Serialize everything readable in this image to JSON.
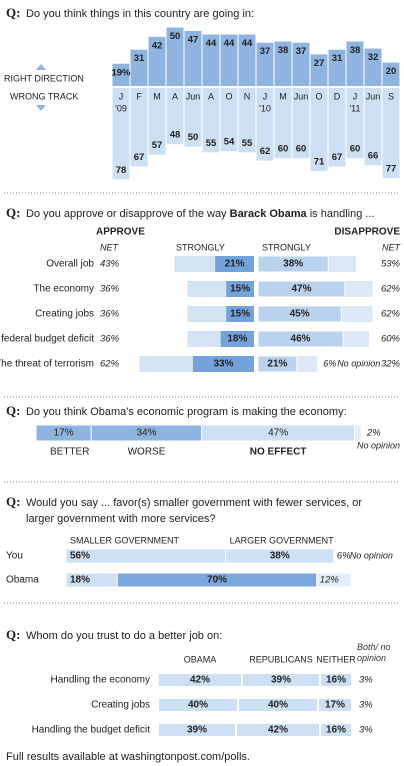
{
  "chart_data": [
    {
      "type": "column",
      "prefix": "Q:",
      "question": [
        [
          "Do you think things in this country are going in:"
        ]
      ],
      "categories": [
        "J",
        "F",
        "M",
        "A",
        "Jun",
        "A",
        "O",
        "N",
        "J",
        "M",
        "Jun",
        "O",
        "D",
        "J",
        "Jun",
        "S"
      ],
      "years": [
        "'09",
        null,
        null,
        null,
        null,
        null,
        null,
        null,
        "'10",
        null,
        null,
        null,
        null,
        "'11",
        null,
        null
      ],
      "series": [
        {
          "name": "RIGHT DIRECTION",
          "color": "#8fb4e0",
          "values": [
            19,
            31,
            42,
            50,
            47,
            44,
            44,
            44,
            37,
            38,
            37,
            27,
            31,
            38,
            32,
            20
          ],
          "value_labels": [
            "19%",
            "31",
            "42",
            "50",
            "47",
            "44",
            "44",
            "44",
            "37",
            "38",
            "37",
            "27",
            "31",
            "38",
            "32",
            "20"
          ]
        },
        {
          "name": "WRONG TRACK",
          "color": "#cddff2",
          "values": [
            78,
            67,
            57,
            48,
            50,
            55,
            54,
            55,
            62,
            60,
            60,
            71,
            67,
            60,
            66,
            77
          ]
        }
      ]
    },
    {
      "type": "diverging",
      "prefix": "Q:",
      "question": [
        [
          "Do you approve or disapprove of the way ",
          "Barack Obama",
          " is handling ..."
        ]
      ],
      "categories": [
        "Overall job",
        "The economy",
        "Creating jobs",
        "The federal budget deficit",
        "The threat of terrorism"
      ],
      "series": [
        {
          "name": "APPROVE",
          "net_name": "NET",
          "strong_name": "STRONGLY",
          "color": "#d3e3f4",
          "strong_color": "#74a2da",
          "values": [
            43,
            36,
            36,
            36,
            62
          ],
          "value_labels": [
            "43%",
            "36%",
            "36%",
            "36%",
            "62%"
          ],
          "strong_values": [
            21,
            15,
            15,
            18,
            33
          ],
          "strong_value_labels": [
            "21%",
            "15%",
            "15%",
            "18%",
            "33%"
          ]
        },
        {
          "name": "DISAPPROVE",
          "net_name": "NET",
          "strong_name": "STRONGLY",
          "color": "#dde9f6",
          "strong_color": "#b9d2ee",
          "values": [
            53,
            62,
            62,
            60,
            32
          ],
          "value_labels": [
            "53%",
            "62%",
            "62%",
            "60%",
            "32%"
          ],
          "strong_values": [
            38,
            47,
            45,
            46,
            21
          ],
          "strong_value_labels": [
            "38%",
            "47%",
            "45%",
            "46%",
            "21%"
          ]
        }
      ],
      "no_opinion": {
        "name": "No opinion",
        "values": [
          null,
          null,
          null,
          null,
          6
        ],
        "value_labels": [
          null,
          null,
          null,
          null,
          "6%"
        ]
      }
    },
    {
      "type": "stacked",
      "prefix": "Q:",
      "question": [
        [
          "Do you think Obama's economic program is making the economy:"
        ]
      ],
      "series": [
        {
          "name": "BETTER",
          "color": "#8fb4e0",
          "values": [
            17
          ],
          "value_labels": [
            "17%"
          ]
        },
        {
          "name": "WORSE",
          "color": "#8fb4e0",
          "values": [
            34
          ],
          "value_labels": [
            "34%"
          ]
        },
        {
          "name": "NO EFFECT",
          "color": "#cddff2",
          "bold": true,
          "values": [
            47
          ],
          "value_labels": [
            "47%"
          ]
        },
        {
          "name": "No opinion",
          "color": "#e4edf8",
          "aside": true,
          "values": [
            2
          ],
          "value_labels": [
            "2%"
          ]
        }
      ]
    },
    {
      "type": "stacked",
      "prefix": "Q:",
      "question": [
        [
          "Would you say ... favor(s) smaller government with fewer services, or"
        ],
        [
          "larger government with more services?"
        ]
      ],
      "categories": [
        "You",
        "Obama"
      ],
      "series": [
        {
          "name": "SMALLER GOVERNMENT",
          "colors": [
            "#cddff2",
            "#cddff2"
          ],
          "values": [
            56,
            18
          ],
          "value_labels": [
            "56%",
            "18%"
          ]
        },
        {
          "name": "LARGER GOVERNMENT",
          "colors": [
            "#cddff2",
            "#7ba7dc"
          ],
          "values": [
            38,
            70
          ],
          "value_labels": [
            "38%",
            "70%"
          ]
        },
        {
          "name": "No opinion",
          "colors": [
            "#ffffff",
            "#e4edf8"
          ],
          "aside": true,
          "values": [
            6,
            12
          ],
          "value_labels": [
            "6%",
            "12%"
          ]
        }
      ]
    },
    {
      "type": "bar",
      "prefix": "Q:",
      "question": [
        [
          "Whom do you trust to do a better job on:"
        ]
      ],
      "categories": [
        "Handling the economy",
        "Creating jobs",
        "Handling the budget deficit"
      ],
      "series": [
        {
          "name": "OBAMA",
          "color": "#cddff2",
          "values": [
            42,
            40,
            39
          ],
          "value_labels": [
            "42%",
            "40%",
            "39%"
          ]
        },
        {
          "name": "REPUBLICANS",
          "color": "#cddff2",
          "values": [
            39,
            40,
            42
          ],
          "value_labels": [
            "39%",
            "40%",
            "42%"
          ]
        },
        {
          "name": "NEITHER",
          "color": "#cddff2",
          "values": [
            16,
            17,
            16
          ],
          "value_labels": [
            "16%",
            "17%",
            "16%"
          ]
        },
        {
          "name": "Both/ no opinion",
          "aside": true,
          "values": [
            3,
            3,
            3
          ],
          "value_labels": [
            "3%",
            "3%",
            "3%"
          ]
        }
      ]
    }
  ],
  "footer": "Full results available at washingtonpost.com/polls."
}
